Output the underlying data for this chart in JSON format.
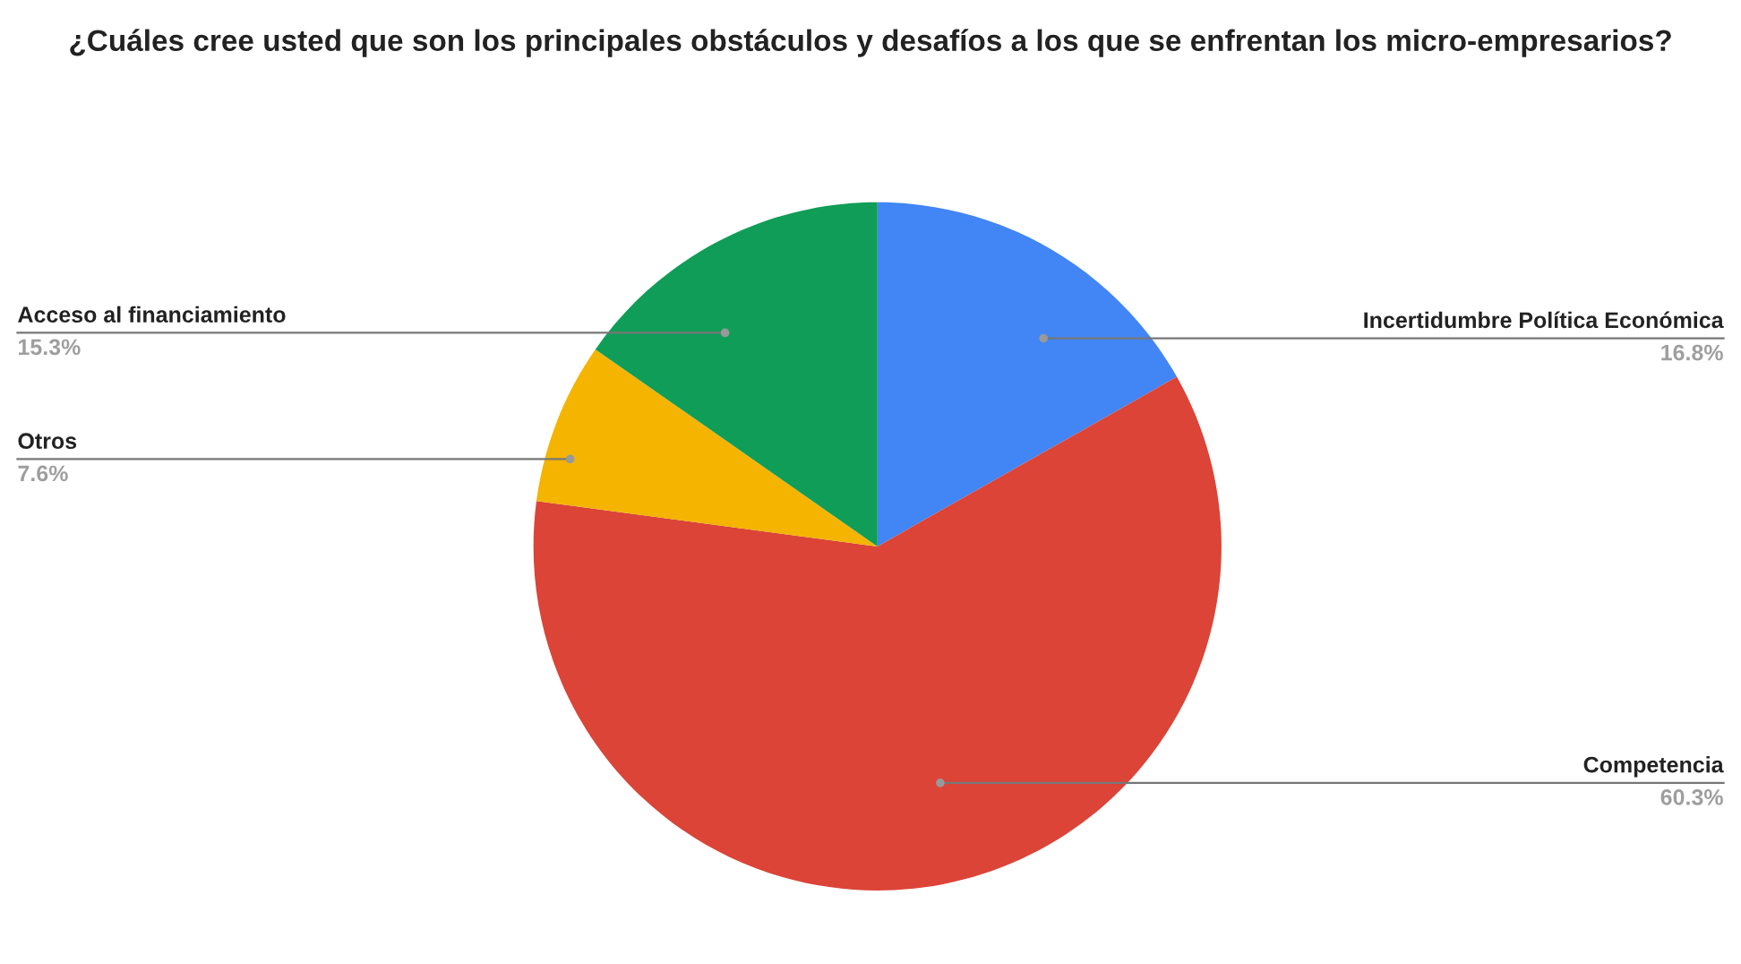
{
  "chart_data": {
    "type": "pie",
    "title": "¿Cuáles cree usted que son los principales obstáculos y desafíos a los que se enfrentan los micro-empresarios?",
    "categories": [
      "Incertidumbre Política Económica",
      "Competencia",
      "Otros",
      "Acceso al financiamiento"
    ],
    "values": [
      16.8,
      60.3,
      7.6,
      15.3
    ],
    "colors": [
      "#4285f4",
      "#db4437",
      "#f4b400",
      "#0f9d58"
    ],
    "value_labels": [
      "16.8%",
      "60.3%",
      "7.6%",
      "15.3%"
    ]
  }
}
